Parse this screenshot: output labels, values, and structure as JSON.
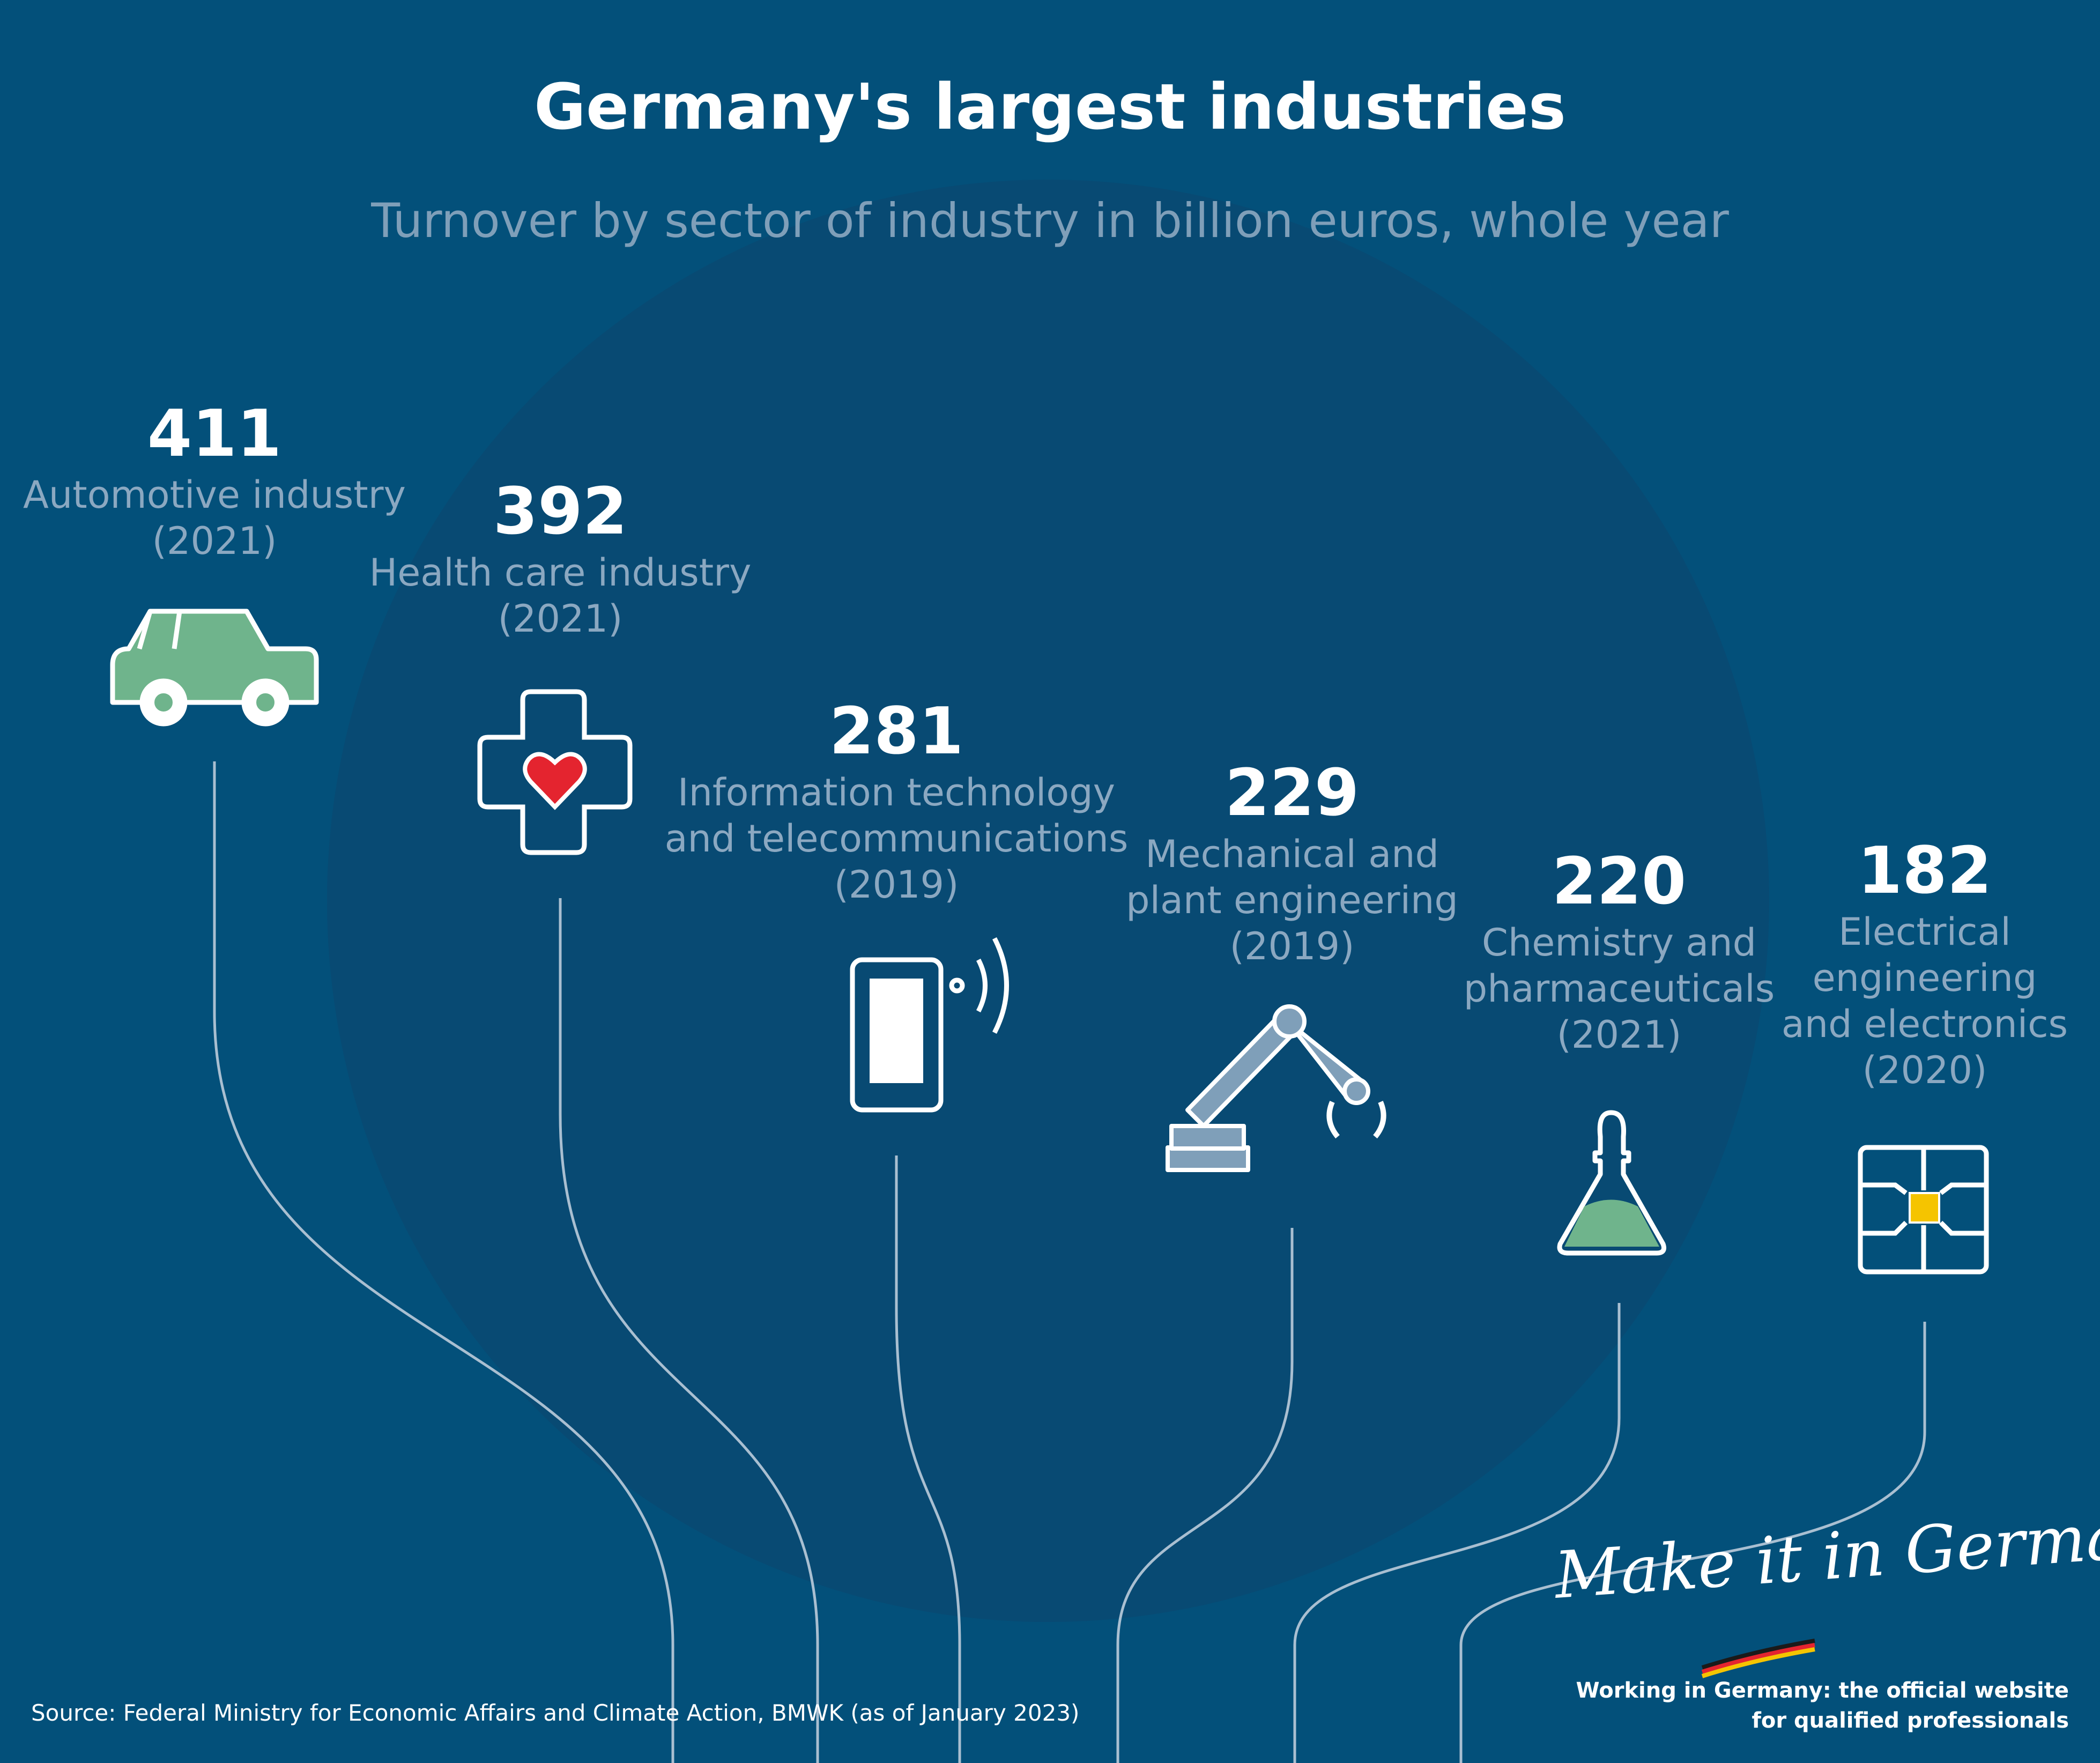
{
  "chart_data": {
    "type": "bar",
    "title": "Germany's largest industries",
    "subtitle": "Turnover by sector of industry in billion euros, whole year",
    "categories": [
      [
        "Automotive industry",
        "(2021)"
      ],
      [
        "Health care industry",
        "(2021)"
      ],
      [
        "Information technology",
        "and telecommunications",
        "(2019)"
      ],
      [
        "Mechanical and",
        "plant engineering",
        "(2019)"
      ],
      [
        "Chemistry and",
        "pharmaceuticals",
        "(2021)"
      ],
      [
        "Electrical",
        "engineering",
        "and electronics",
        "(2020)"
      ]
    ],
    "values": [
      411,
      392,
      281,
      229,
      220,
      182
    ]
  },
  "icons": [
    "car-icon",
    "medical-cross-heart-icon",
    "smartphone-wireless-icon",
    "robot-arm-icon",
    "lab-flask-icon",
    "microchip-icon"
  ],
  "colors": {
    "background": "#03507a",
    "circle": "#084a73",
    "accent_green": "#6fb48c",
    "heart_red": "#e4242f",
    "chip_yellow": "#f5c400",
    "robot_blue": "#7f9fb9"
  },
  "source": "Source: Federal Ministry for Economic Affairs and Climate Action, BMWK (as of January 2023)",
  "brand": {
    "script": "Make it in Germany",
    "tagline_line1": "Working in Germany: the official website",
    "tagline_line2": "for qualified professionals"
  }
}
